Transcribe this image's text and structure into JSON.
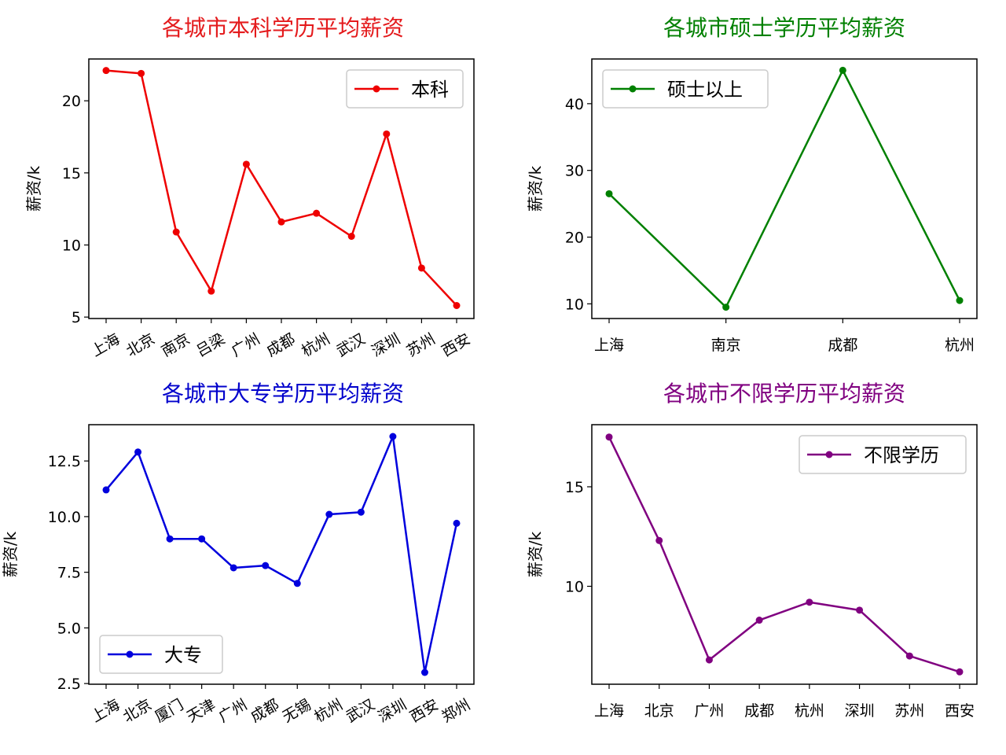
{
  "chart_data": [
    {
      "type": "line",
      "title": "各城市本科学历平均薪资",
      "title_color": "#e41a1c",
      "color": "#ee0000",
      "xlabel": "",
      "ylabel": "薪资/k",
      "categories": [
        "上海",
        "北京",
        "南京",
        "吕梁",
        "广州",
        "成都",
        "杭州",
        "武汉",
        "深圳",
        "苏州",
        "西安"
      ],
      "values": [
        22.1,
        21.9,
        10.9,
        6.8,
        15.6,
        11.6,
        12.2,
        10.6,
        17.7,
        8.4,
        5.8
      ],
      "ylim": [
        4.9,
        22.9
      ],
      "yticks": [
        5,
        10,
        15,
        20
      ],
      "ytick_labels": [
        "5",
        "10",
        "15",
        "20"
      ],
      "xtick_rotation": -30,
      "legend": {
        "label": "本科",
        "position": "top-right"
      },
      "grid": false
    },
    {
      "type": "line",
      "title": "各城市硕士学历平均薪资",
      "title_color": "#008000",
      "color": "#008000",
      "xlabel": "",
      "ylabel": "薪资/k",
      "categories": [
        "上海",
        "南京",
        "成都",
        "杭州"
      ],
      "values": [
        26.5,
        9.5,
        45.0,
        10.5
      ],
      "ylim": [
        7.8,
        46.7
      ],
      "yticks": [
        10,
        20,
        30,
        40
      ],
      "ytick_labels": [
        "10",
        "20",
        "30",
        "40"
      ],
      "xtick_rotation": 0,
      "legend": {
        "label": "硕士以上",
        "position": "top-left"
      },
      "grid": false
    },
    {
      "type": "line",
      "title": "各城市大专学历平均薪资",
      "title_color": "#0000cc",
      "color": "#0000dd",
      "xlabel": "",
      "ylabel": "薪资/k",
      "categories": [
        "上海",
        "北京",
        "厦门",
        "天津",
        "广州",
        "成都",
        "无锡",
        "杭州",
        "武汉",
        "深圳",
        "西安",
        "郑州"
      ],
      "values": [
        11.2,
        12.9,
        9.0,
        9.0,
        7.7,
        7.8,
        7.0,
        10.1,
        10.2,
        13.6,
        3.0,
        9.7
      ],
      "ylim": [
        2.47,
        14.13
      ],
      "yticks": [
        2.5,
        5.0,
        7.5,
        10.0,
        12.5
      ],
      "ytick_labels": [
        "2.5",
        "5.0",
        "7.5",
        "10.0",
        "12.5"
      ],
      "xtick_rotation": -30,
      "legend": {
        "label": "大专",
        "position": "bottom-left"
      },
      "grid": false
    },
    {
      "type": "line",
      "title": "各城市不限学历平均薪资",
      "title_color": "#800080",
      "color": "#800080",
      "xlabel": "",
      "ylabel": "薪资/k",
      "categories": [
        "上海",
        "北京",
        "广州",
        "成都",
        "杭州",
        "深圳",
        "苏州",
        "西安"
      ],
      "values": [
        17.5,
        12.3,
        6.3,
        8.3,
        9.2,
        8.8,
        6.5,
        5.7
      ],
      "ylim": [
        5.08,
        18.12
      ],
      "yticks": [
        10,
        15
      ],
      "ytick_labels": [
        "10",
        "15"
      ],
      "xtick_rotation": 0,
      "legend": {
        "label": "不限学历",
        "position": "top-right"
      },
      "grid": false
    }
  ]
}
